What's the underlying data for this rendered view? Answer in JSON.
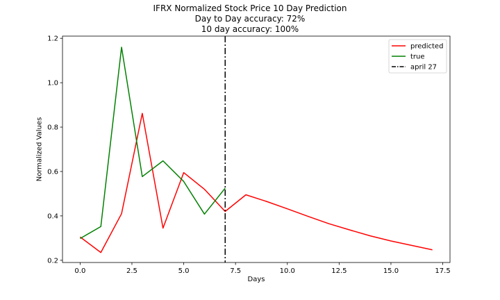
{
  "chart_data": {
    "type": "line",
    "title": "IFRX Normalized Stock Price 10 Day Prediction",
    "subtitle_lines": [
      "Day to Day accuracy: 72%",
      "10 day accuracy: 100%"
    ],
    "xlabel": "Days",
    "ylabel": "Normalized Values",
    "xlim": [
      -0.85,
      17.85
    ],
    "ylim": [
      0.19,
      1.21
    ],
    "xticks": [
      0.0,
      2.5,
      5.0,
      7.5,
      10.0,
      12.5,
      15.0,
      17.5
    ],
    "xtick_labels": [
      "0.0",
      "2.5",
      "5.0",
      "7.5",
      "10.0",
      "12.5",
      "15.0",
      "17.5"
    ],
    "yticks": [
      0.2,
      0.4,
      0.6,
      0.8,
      1.0,
      1.2
    ],
    "ytick_labels": [
      "0.2",
      "0.4",
      "0.6",
      "0.8",
      "1.0",
      "1.2"
    ],
    "grid": false,
    "legend_position": "top-right",
    "series": [
      {
        "name": "predicted",
        "color": "#ff0000",
        "style": "solid",
        "x": [
          0,
          1,
          2,
          3,
          4,
          5,
          6,
          7,
          8,
          9,
          10,
          11,
          12,
          13,
          14,
          15,
          16,
          17
        ],
        "y": [
          0.305,
          0.235,
          0.41,
          0.862,
          0.345,
          0.595,
          0.52,
          0.42,
          0.495,
          0.465,
          0.432,
          0.398,
          0.365,
          0.337,
          0.31,
          0.287,
          0.267,
          0.247
        ]
      },
      {
        "name": "true",
        "color": "#008000",
        "style": "solid",
        "x": [
          0,
          1,
          2,
          3,
          4,
          5,
          6,
          7
        ],
        "y": [
          0.298,
          0.352,
          1.16,
          0.577,
          0.648,
          0.555,
          0.408,
          0.525
        ]
      }
    ],
    "vlines": [
      {
        "name": "april 27",
        "x": 7,
        "color": "#000000",
        "style": "dashdot"
      }
    ]
  }
}
